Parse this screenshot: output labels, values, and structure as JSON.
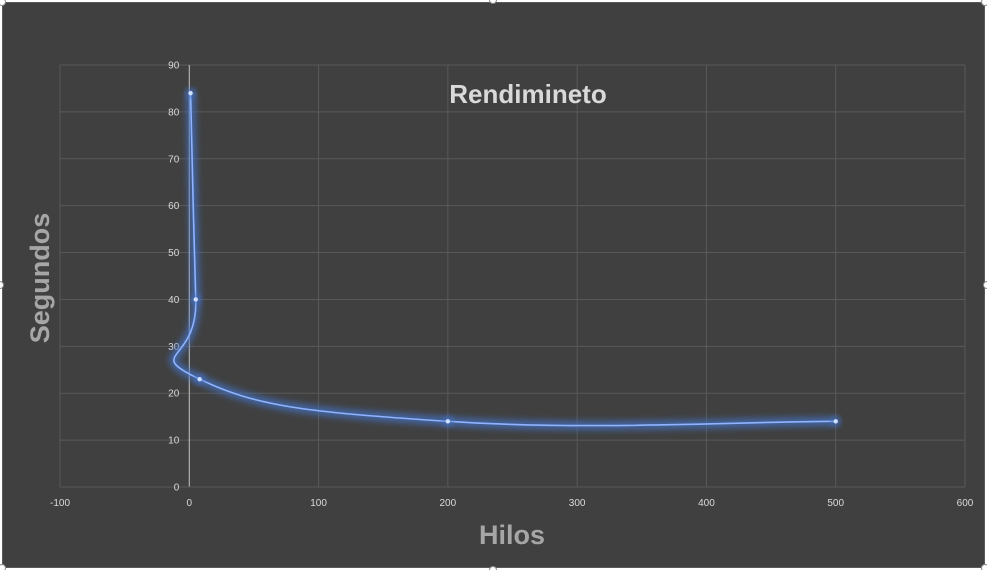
{
  "chart_data": {
    "type": "scatter",
    "title": "Rendimineto",
    "xlabel": "Hilos",
    "ylabel": "Segundos",
    "xlim": [
      -100,
      600
    ],
    "ylim": [
      0,
      90
    ],
    "x_ticks": [
      -100,
      0,
      100,
      200,
      300,
      400,
      500,
      600
    ],
    "y_ticks": [
      0,
      10,
      20,
      30,
      40,
      50,
      60,
      70,
      80,
      90
    ],
    "grid": true,
    "legend": "none",
    "smoothed_line": true,
    "series": [
      {
        "x": [
          1,
          5,
          8,
          200,
          500
        ],
        "y": [
          84,
          40,
          23,
          14,
          14
        ],
        "color": "#4472c4"
      }
    ]
  },
  "colors": {
    "background": "#404040",
    "gridline": "#595959",
    "series_glow": "#4472c4",
    "series_line": "#8fb4ff",
    "text": "#d9d9d9",
    "axis_title": "#a6a6a6"
  }
}
